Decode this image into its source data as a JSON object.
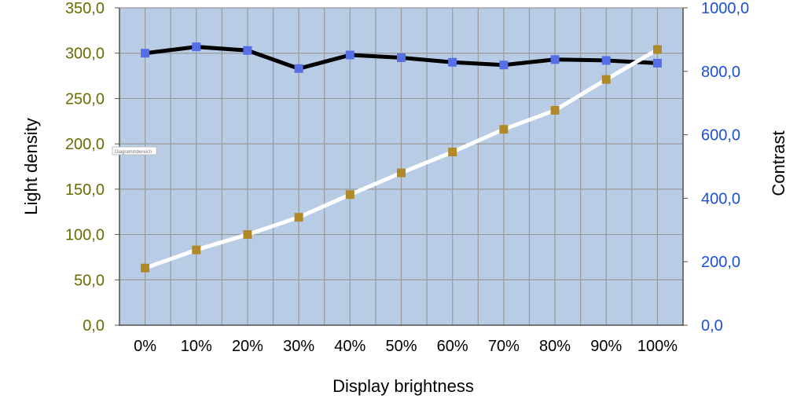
{
  "chart_data": {
    "type": "line",
    "xlabel": "Display brightness",
    "ylabel_left": "Light density",
    "ylabel_right": "Contrast",
    "categories": [
      "0%",
      "10%",
      "20%",
      "30%",
      "40%",
      "50%",
      "60%",
      "70%",
      "80%",
      "90%",
      "100%"
    ],
    "y_left": {
      "lim": [
        0,
        350
      ],
      "ticks": [
        0,
        50,
        100,
        150,
        200,
        250,
        300,
        350
      ],
      "tick_labels": [
        "0,0",
        "50,0",
        "100,0",
        "150,0",
        "200,0",
        "250,0",
        "300,0",
        "350,0"
      ],
      "color": "#6b6b00"
    },
    "y_right": {
      "lim": [
        0,
        1000
      ],
      "ticks": [
        0,
        200,
        400,
        600,
        800,
        1000
      ],
      "tick_labels": [
        "0,0",
        "200,0",
        "400,0",
        "600,0",
        "800,0",
        "1000,0"
      ],
      "color": "#1a4fd6"
    },
    "series": [
      {
        "axis": "left",
        "values": [
          300,
          307,
          303,
          283,
          298,
          295,
          290,
          287,
          293,
          292,
          289
        ],
        "line_color": "#000000",
        "marker_color": "#5570e6"
      },
      {
        "axis": "left",
        "values": [
          63,
          83,
          100,
          119,
          144,
          168,
          191,
          216,
          237,
          271,
          304
        ],
        "line_color": "#ffffff",
        "marker_color": "#b08a28"
      }
    ],
    "grid": true,
    "plot_background": "#b8cce6",
    "overlay_label": "Diagrammbereich"
  }
}
